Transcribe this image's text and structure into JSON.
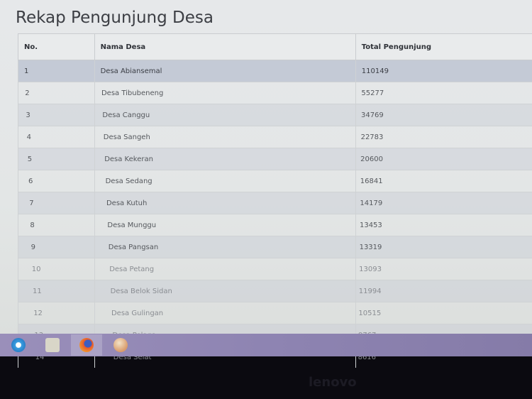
{
  "page": {
    "title": "Rekap Pengunjung Desa"
  },
  "table": {
    "headers": [
      "No.",
      "Nama Desa",
      "Total Pengunjung"
    ],
    "rows": [
      {
        "no": "1",
        "nama": "Desa Abiansemal",
        "total": "110149"
      },
      {
        "no": "2",
        "nama": "Desa Tibubeneng",
        "total": "55277"
      },
      {
        "no": "3",
        "nama": "Desa Canggu",
        "total": "34769"
      },
      {
        "no": "4",
        "nama": "Desa Sangeh",
        "total": "22783"
      },
      {
        "no": "5",
        "nama": "Desa Kekeran",
        "total": "20600"
      },
      {
        "no": "6",
        "nama": "Desa Sedang",
        "total": "16841"
      },
      {
        "no": "7",
        "nama": "Desa Kutuh",
        "total": "14179"
      },
      {
        "no": "8",
        "nama": "Desa Munggu",
        "total": "13453"
      },
      {
        "no": "9",
        "nama": "Desa Pangsan",
        "total": "13319"
      },
      {
        "no": "10",
        "nama": "Desa Petang",
        "total": "13093"
      },
      {
        "no": "11",
        "nama": "Desa Belok Sidan",
        "total": "11994"
      },
      {
        "no": "12",
        "nama": "Desa Gulingan",
        "total": "10515"
      },
      {
        "no": "13",
        "nama": "Desa Pelaga",
        "total": "9767"
      },
      {
        "no": "14",
        "nama": "Desa Selat",
        "total": "8616"
      }
    ]
  },
  "taskbar": {
    "items": [
      {
        "icon": "internet-explorer-icon"
      },
      {
        "icon": "file-explorer-icon"
      },
      {
        "icon": "firefox-icon",
        "active": true
      },
      {
        "icon": "app-orb-icon"
      }
    ]
  },
  "colors": {
    "header_row": "#e9ebec",
    "selected_row": "#c4cad6",
    "taskbar": "#8e84b2"
  }
}
